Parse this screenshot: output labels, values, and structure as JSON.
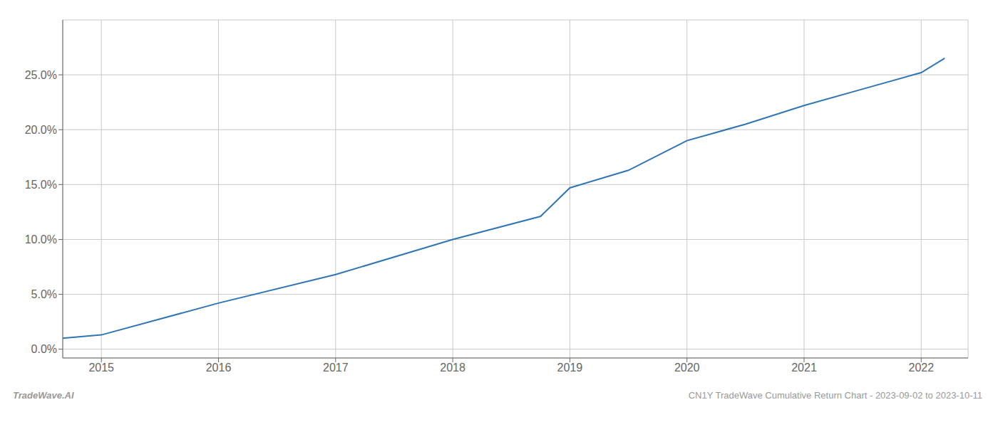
{
  "chart_data": {
    "type": "line",
    "x": [
      2014.67,
      2015.0,
      2016.0,
      2017.0,
      2018.0,
      2018.75,
      2019.0,
      2019.5,
      2020.0,
      2020.5,
      2021.0,
      2021.5,
      2022.0,
      2022.2
    ],
    "values": [
      0.01,
      0.013,
      0.042,
      0.068,
      0.1,
      0.121,
      0.147,
      0.163,
      0.19,
      0.205,
      0.222,
      0.237,
      0.252,
      0.265
    ],
    "color": "#2e75b6",
    "xlim": [
      2014.67,
      2022.4
    ],
    "xticks": [
      2015,
      2016,
      2017,
      2018,
      2019,
      2020,
      2021,
      2022
    ],
    "ylim": [
      -0.008,
      0.3
    ],
    "yticks": [
      {
        "value": 0.0,
        "label": "0.0%"
      },
      {
        "value": 0.05,
        "label": "5.0%"
      },
      {
        "value": 0.1,
        "label": "10.0%"
      },
      {
        "value": 0.15,
        "label": "15.0%"
      },
      {
        "value": 0.2,
        "label": "20.0%"
      },
      {
        "value": 0.25,
        "label": "25.0%"
      }
    ],
    "grid": true,
    "annotations": [
      "TradeWave.AI",
      "CN1Y TradeWave Cumulative Return Chart - 2023-09-02 to 2023-10-11"
    ]
  }
}
